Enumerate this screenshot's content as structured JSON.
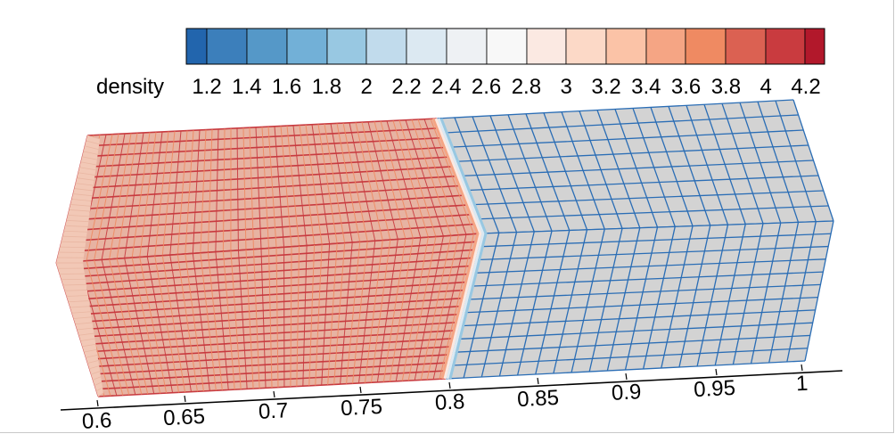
{
  "chart_data": {
    "type": "heatmap",
    "title": "",
    "colorbar": {
      "label": "density",
      "tick_labels": [
        "1.2",
        "1.4",
        "1.6",
        "1.8",
        "2",
        "2.2",
        "2.4",
        "2.6",
        "2.8",
        "3",
        "3.2",
        "3.4",
        "3.6",
        "3.8",
        "4",
        "4.2"
      ],
      "range": [
        1.1,
        4.3
      ],
      "bins": 16,
      "colors": [
        "#2265ad",
        "#3c7fbb",
        "#5598c8",
        "#72b0d7",
        "#98c8e2",
        "#c1dbec",
        "#dce9f2",
        "#eef1f4",
        "#f8f8f8",
        "#fbe9e2",
        "#fcd9c7",
        "#fbc3a7",
        "#f5a584",
        "#ef8a62",
        "#db6152",
        "#c93b3f",
        "#b2182b"
      ]
    },
    "x_axis": {
      "tick_labels": [
        "0.6",
        "0.65",
        "0.7",
        "0.75",
        "0.8",
        "0.85",
        "0.9",
        "0.95",
        "1"
      ],
      "ticks": [
        0.6,
        0.65,
        0.7,
        0.75,
        0.8,
        0.85,
        0.9,
        0.95,
        1.0
      ],
      "range": [
        0.6,
        1.0
      ]
    },
    "field": {
      "dense_region": {
        "x_range": [
          0.6,
          0.795
        ],
        "density": 4.0,
        "colormap_value": "high"
      },
      "shock_position": 0.795,
      "ambient_region": {
        "x_range": [
          0.795,
          1.0
        ],
        "density": 1.0
      },
      "grid": "finer cells in compressed region, coarse cells in ambient region",
      "faces": [
        "top",
        "front",
        "left-end"
      ],
      "render_mode": "shaded cells with cell-edge lines"
    },
    "colors": {
      "ambient_face_fill": "#d3d3d3",
      "ambient_edge": "#2a6db5",
      "dense_top_fill": "#e7b3a2",
      "dense_edge_red": "#c83a3f",
      "dense_edge_orange": "#ef8a62",
      "end_face_fill": "#f2c8b6",
      "axis": "#000000"
    }
  }
}
